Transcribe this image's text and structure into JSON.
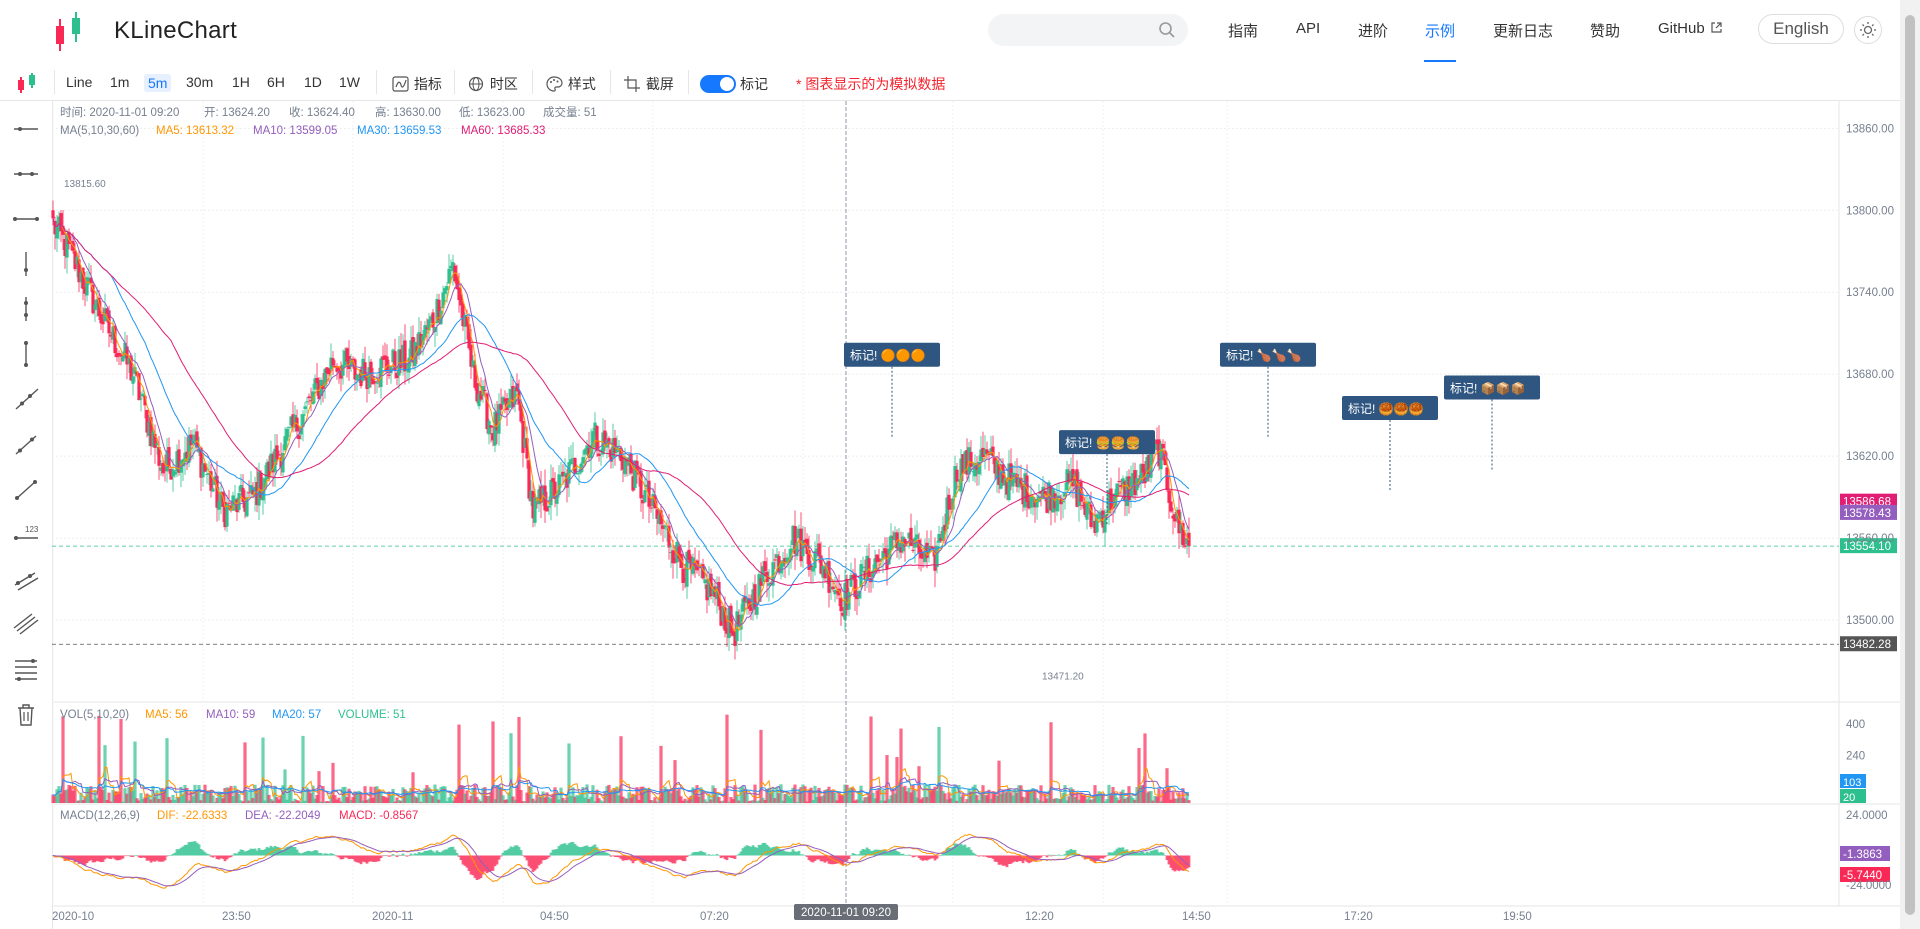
{
  "app": {
    "title": "KLineChart"
  },
  "nav": {
    "items": [
      "指南",
      "API",
      "进阶",
      "示例",
      "更新日志",
      "赞助",
      "GitHub"
    ],
    "active": "示例",
    "lang_button": "English"
  },
  "toolbar": {
    "line_label": "Line",
    "periods": [
      "1m",
      "5m",
      "30m",
      "1H",
      "6H",
      "1D",
      "1W"
    ],
    "active_period": "5m",
    "indicator_label": "指标",
    "timezone_label": "时区",
    "style_label": "样式",
    "screenshot_label": "截屏",
    "mark_label": "标记",
    "notice": "* 图表显示的为模拟数据"
  },
  "left_tools": [
    "horizontal-ray-icon",
    "horizontal-segment-icon",
    "horizontal-line-icon",
    "vertical-ray-icon",
    "vertical-segment-icon",
    "vertical-line-icon",
    "ray-icon",
    "segment-icon",
    "straight-line-icon",
    "price-line-icon",
    "price-channel-icon",
    "parallel-line-icon",
    "fibonacci-icon",
    "delete-icon"
  ],
  "legend": {
    "ohlc": [
      "时间: 2020-11-01 09:20",
      "开: 13624.20",
      "收: 13624.40",
      "高: 13630.00",
      "低: 13623.00",
      "成交量: 51"
    ],
    "ma_name": "MA(5,10,30,60)",
    "ma": [
      "MA5: 13613.32",
      "MA10: 13599.05",
      "MA30: 13659.53",
      "MA60: 13685.33"
    ],
    "vol_name": "VOL(5,10,20)",
    "vol": [
      "MA5: 56",
      "MA10: 59",
      "MA20: 57",
      "VOLUME: 51"
    ],
    "macd_name": "MACD(12,26,9)",
    "macd": [
      "DIF: -22.6333",
      "DEA: -22.2049",
      "MACD: -0.8567"
    ]
  },
  "colors": {
    "up": "#2DC08E",
    "down": "#F92855",
    "ma5": "#FF9600",
    "ma10": "#935EBD",
    "ma30": "#2196F3",
    "ma60": "#E11D74",
    "brand": "#1677ff"
  },
  "chart_data": {
    "type": "candlestick",
    "price_axis": {
      "ticks": [
        "13860.00",
        "13800.00",
        "13740.00",
        "13680.00",
        "13620.00",
        "13560.00",
        "13500.00"
      ],
      "ylim": [
        13440,
        13880
      ]
    },
    "vol_axis": {
      "ticks": [
        "400",
        "240"
      ]
    },
    "macd_axis": {
      "ticks": [
        "24.0000",
        "-24.0000"
      ]
    },
    "x_ticks": [
      "2020-10",
      "23:50",
      "2020-11",
      "04:50",
      "07:20",
      "12:20",
      "14:50",
      "17:20",
      "19:50"
    ],
    "crosshair_time": "2020-11-01 09:20",
    "max_label": "13815.60",
    "min_label": "13471.20",
    "price_tags": [
      {
        "text": "13586.68",
        "color": "#E11D74"
      },
      {
        "text": "13578.43",
        "color": "#935EBD"
      },
      {
        "text": "13554.10",
        "color": "#2DC08E"
      },
      {
        "text": "13482.28",
        "color": "#555555"
      }
    ],
    "vol_tags": [
      {
        "text": "103",
        "color": "#2196F3"
      },
      {
        "text": "20",
        "color": "#2DC08E"
      }
    ],
    "macd_tags": [
      {
        "text": "-1.3863",
        "color": "#935EBD"
      },
      {
        "text": "-5.7440",
        "color": "#F92855"
      }
    ],
    "marks": [
      {
        "text": "标记! 🟠🟠🟠",
        "price": 13684
      },
      {
        "text": "标记! 🍔🍔🍔",
        "price": 13620
      },
      {
        "text": "标记! 🍗🍗🍗",
        "price": 13684
      },
      {
        "text": "标记! 🥮🥮🥮",
        "price": 13645
      },
      {
        "text": "标记! 📦📦📦",
        "price": 13660
      }
    ],
    "close_anchors": [
      [
        0,
        13790
      ],
      [
        8,
        13770
      ],
      [
        25,
        13720
      ],
      [
        40,
        13680
      ],
      [
        55,
        13610
      ],
      [
        70,
        13630
      ],
      [
        85,
        13580
      ],
      [
        100,
        13590
      ],
      [
        112,
        13620
      ],
      [
        125,
        13650
      ],
      [
        140,
        13690
      ],
      [
        152,
        13680
      ],
      [
        165,
        13685
      ],
      [
        178,
        13690
      ],
      [
        190,
        13720
      ],
      [
        200,
        13760
      ],
      [
        210,
        13680
      ],
      [
        220,
        13640
      ],
      [
        232,
        13665
      ],
      [
        240,
        13580
      ],
      [
        255,
        13600
      ],
      [
        270,
        13635
      ],
      [
        285,
        13620
      ],
      [
        300,
        13580
      ],
      [
        315,
        13540
      ],
      [
        330,
        13520
      ],
      [
        340,
        13490
      ],
      [
        355,
        13530
      ],
      [
        370,
        13560
      ],
      [
        385,
        13540
      ],
      [
        395,
        13515
      ],
      [
        410,
        13540
      ],
      [
        425,
        13560
      ],
      [
        440,
        13540
      ],
      [
        452,
        13610
      ],
      [
        465,
        13620
      ],
      [
        480,
        13600
      ],
      [
        495,
        13590
      ],
      [
        510,
        13600
      ],
      [
        520,
        13570
      ],
      [
        530,
        13590
      ],
      [
        545,
        13605
      ],
      [
        553,
        13625
      ],
      [
        562,
        13570
      ],
      [
        568,
        13554
      ]
    ]
  }
}
